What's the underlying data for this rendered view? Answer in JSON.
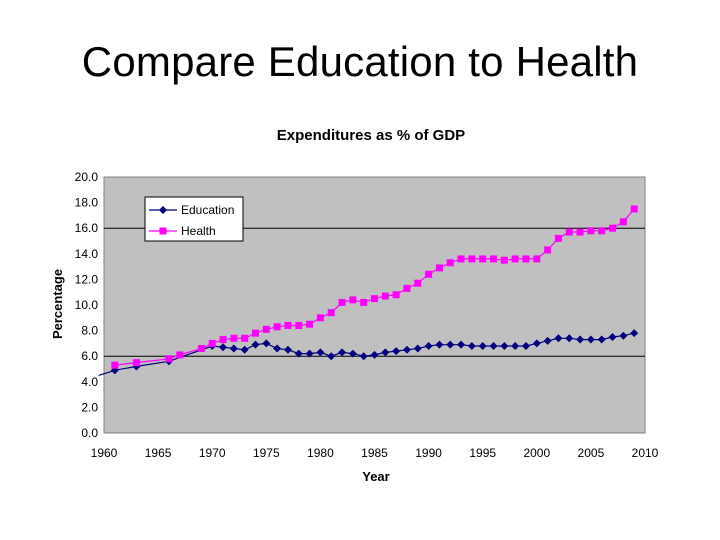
{
  "slide": {
    "title": "Compare Education to Health"
  },
  "colors": {
    "plot_bg": "#c0c0c0",
    "education": "#000080",
    "health": "#ff00ff",
    "gridline": "#000000"
  },
  "chart_data": {
    "type": "line",
    "title": "Expenditures as % of GDP",
    "xlabel": "Year",
    "ylabel": "Percentage",
    "xlim": [
      1960,
      2010
    ],
    "ylim": [
      0,
      20
    ],
    "x_ticks": [
      "1960",
      "1965",
      "1970",
      "1975",
      "1980",
      "1985",
      "1990",
      "1995",
      "2000",
      "2005",
      "2010"
    ],
    "y_ticks": [
      "0.0",
      "2.0",
      "4.0",
      "6.0",
      "8.0",
      "10.0",
      "12.0",
      "14.0",
      "16.0",
      "18.0",
      "20.0"
    ],
    "gridlines_y": [
      6,
      16
    ],
    "legend": {
      "placement": "top-left"
    },
    "series": [
      {
        "name": "Education",
        "marker": "diamond",
        "points": [
          [
            1959.5,
            4.5
          ],
          [
            1961,
            4.9
          ],
          [
            1963,
            5.2
          ],
          [
            1966,
            5.6
          ],
          [
            1970,
            6.8
          ],
          [
            1971,
            6.7
          ],
          [
            1972,
            6.6
          ],
          [
            1973,
            6.5
          ],
          [
            1974,
            6.9
          ],
          [
            1975,
            7.0
          ],
          [
            1976,
            6.6
          ],
          [
            1977,
            6.5
          ],
          [
            1978,
            6.2
          ],
          [
            1979,
            6.2
          ],
          [
            1980,
            6.3
          ],
          [
            1981,
            6.0
          ],
          [
            1982,
            6.3
          ],
          [
            1983,
            6.2
          ],
          [
            1984,
            6.0
          ],
          [
            1985,
            6.1
          ],
          [
            1986,
            6.3
          ],
          [
            1987,
            6.4
          ],
          [
            1988,
            6.5
          ],
          [
            1989,
            6.6
          ],
          [
            1990,
            6.8
          ],
          [
            1991,
            6.9
          ],
          [
            1992,
            6.9
          ],
          [
            1993,
            6.9
          ],
          [
            1994,
            6.8
          ],
          [
            1995,
            6.8
          ],
          [
            1996,
            6.8
          ],
          [
            1997,
            6.8
          ],
          [
            1998,
            6.8
          ],
          [
            1999,
            6.8
          ],
          [
            2000,
            7.0
          ],
          [
            2001,
            7.2
          ],
          [
            2002,
            7.4
          ],
          [
            2003,
            7.4
          ],
          [
            2004,
            7.3
          ],
          [
            2005,
            7.3
          ],
          [
            2006,
            7.3
          ],
          [
            2007,
            7.5
          ],
          [
            2008,
            7.6
          ],
          [
            2009,
            7.8
          ]
        ]
      },
      {
        "name": "Health",
        "marker": "square",
        "points": [
          [
            1961,
            5.3
          ],
          [
            1963,
            5.5
          ],
          [
            1966,
            5.8
          ],
          [
            1967,
            6.1
          ],
          [
            1969,
            6.6
          ],
          [
            1970,
            7.0
          ],
          [
            1971,
            7.3
          ],
          [
            1972,
            7.4
          ],
          [
            1973,
            7.4
          ],
          [
            1974,
            7.8
          ],
          [
            1975,
            8.1
          ],
          [
            1976,
            8.3
          ],
          [
            1977,
            8.4
          ],
          [
            1978,
            8.4
          ],
          [
            1979,
            8.5
          ],
          [
            1980,
            9.0
          ],
          [
            1981,
            9.4
          ],
          [
            1982,
            10.2
          ],
          [
            1983,
            10.4
          ],
          [
            1984,
            10.2
          ],
          [
            1985,
            10.5
          ],
          [
            1986,
            10.7
          ],
          [
            1987,
            10.8
          ],
          [
            1988,
            11.3
          ],
          [
            1989,
            11.7
          ],
          [
            1990,
            12.4
          ],
          [
            1991,
            12.9
          ],
          [
            1992,
            13.3
          ],
          [
            1993,
            13.6
          ],
          [
            1994,
            13.6
          ],
          [
            1995,
            13.6
          ],
          [
            1996,
            13.6
          ],
          [
            1997,
            13.5
          ],
          [
            1998,
            13.6
          ],
          [
            1999,
            13.6
          ],
          [
            2000,
            13.6
          ],
          [
            2001,
            14.3
          ],
          [
            2002,
            15.2
          ],
          [
            2003,
            15.7
          ],
          [
            2004,
            15.7
          ],
          [
            2005,
            15.8
          ],
          [
            2006,
            15.8
          ],
          [
            2007,
            16.0
          ],
          [
            2008,
            16.5
          ],
          [
            2009,
            17.5
          ]
        ]
      }
    ]
  }
}
